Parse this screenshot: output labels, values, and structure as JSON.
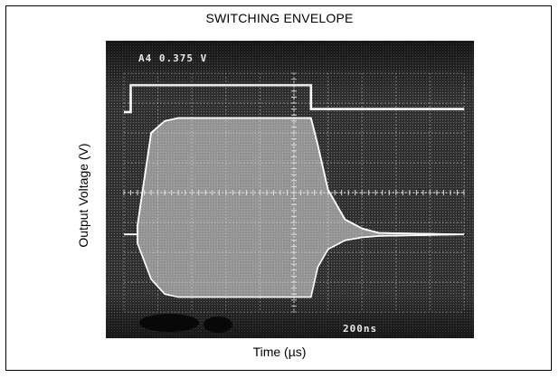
{
  "chart_data": {
    "type": "line",
    "title": "SWITCHING ENVELOPE",
    "xlabel": "Time (µs)",
    "ylabel": "Output Voltage (V)",
    "grid": true,
    "scope_readouts": {
      "channel_scale": "A4  0.375 V",
      "timebase": "200ns"
    },
    "time_per_div_ns": 200,
    "divisions": {
      "x": 10,
      "y": 8
    },
    "series": [
      {
        "divisions_x": [
          0,
          0.2,
          0.2,
          5.5,
          5.5,
          10
        ],
        "divisions_y": [
          6.7,
          6.7,
          7.6,
          7.6,
          6.8,
          6.8
        ]
      },
      {
        "divisions_x": [
          0,
          0.4,
          0.4,
          0.8,
          1.2,
          1.6,
          5.5,
          5.7,
          6.0,
          6.5,
          7.0,
          7.5,
          10
        ],
        "divisions_y_upper": [
          2.6,
          2.6,
          2.9,
          6.0,
          6.4,
          6.5,
          6.5,
          5.6,
          4.1,
          3.1,
          2.8,
          2.65,
          2.6
        ],
        "divisions_y_lower": [
          2.6,
          2.6,
          2.3,
          1.1,
          0.6,
          0.5,
          0.5,
          1.5,
          2.1,
          2.4,
          2.5,
          2.55,
          2.6
        ]
      }
    ]
  }
}
